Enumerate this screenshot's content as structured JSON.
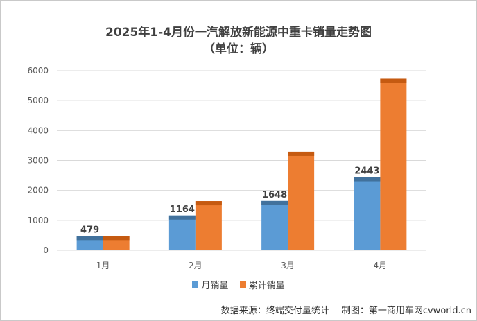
{
  "chart_data": {
    "type": "bar",
    "title": "2025年1-4月份一汽解放新能源中重卡销量走势图",
    "subtitle": "（单位：辆）",
    "categories": [
      "1月",
      "2月",
      "3月",
      "4月"
    ],
    "series": [
      {
        "name": "月销量",
        "values": [
          479,
          1164,
          1648,
          2443
        ],
        "color": "#5b9bd5",
        "cap_color": "#41719c"
      },
      {
        "name": "累计销量",
        "values": [
          479,
          1643,
          3291,
          5734
        ],
        "color": "#ed7d31",
        "cap_color": "#c55a11"
      }
    ],
    "data_labels": [
      "479",
      "1164",
      "1648",
      "2443"
    ],
    "yticks": [
      "0",
      "1000",
      "2000",
      "3000",
      "4000",
      "5000",
      "6000"
    ],
    "ylim": [
      0,
      6000
    ],
    "legend": "bottom"
  },
  "footer": {
    "source": "数据来源：终端交付量统计",
    "credit": "制图：第一商用车网cvworld.cn"
  }
}
